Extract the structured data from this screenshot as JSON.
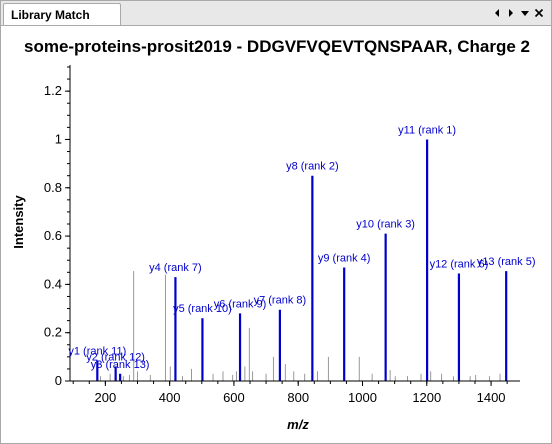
{
  "panel": {
    "tab_label": "Library Match",
    "controls": [
      {
        "name": "scroll-left-icon"
      },
      {
        "name": "scroll-right-icon"
      },
      {
        "name": "dropdown-icon"
      },
      {
        "name": "close-icon"
      }
    ]
  },
  "chart_data": {
    "type": "bar",
    "title": "some-proteins-prosit2019 - DDGVFVQEVTQNSPAAR, Charge 2",
    "xlabel": "m/z",
    "ylabel": "Intensity",
    "xlim": [
      90,
      1490
    ],
    "ylim": [
      0,
      1.3
    ],
    "xticks": [
      200,
      400,
      600,
      800,
      1000,
      1200,
      1400
    ],
    "yticks": [
      0,
      0.2,
      0.4,
      0.6,
      0.8,
      1,
      1.2
    ],
    "ytick_labels": [
      "0",
      "0.2",
      "0.4",
      "0.6",
      "0.8",
      "1",
      "1.2"
    ],
    "colors": {
      "matched": "#0000cc",
      "unmatched": "#999999",
      "label": "#0000cc"
    },
    "matched_peaks": [
      {
        "label": "y1 (rank 11)",
        "x": 175,
        "y": 0.085
      },
      {
        "label": "y2 (rank 12)",
        "x": 232,
        "y": 0.06
      },
      {
        "label": "y3 (rank 13)",
        "x": 246,
        "y": 0.03
      },
      {
        "label": "y4 (rank 7)",
        "x": 418,
        "y": 0.43
      },
      {
        "label": "y5 (rank 10)",
        "x": 502,
        "y": 0.26
      },
      {
        "label": "y6 (rank 9)",
        "x": 619,
        "y": 0.28
      },
      {
        "label": "y7 (rank 8)",
        "x": 743,
        "y": 0.295
      },
      {
        "label": "y8 (rank 2)",
        "x": 844,
        "y": 0.85
      },
      {
        "label": "y9 (rank 4)",
        "x": 943,
        "y": 0.47
      },
      {
        "label": "y10 (rank 3)",
        "x": 1072,
        "y": 0.61
      },
      {
        "label": "y11 (rank 1)",
        "x": 1201,
        "y": 1.0
      },
      {
        "label": "y12 (rank 6)",
        "x": 1300,
        "y": 0.445
      },
      {
        "label": "y13 (rank 5)",
        "x": 1447,
        "y": 0.455
      }
    ],
    "unmatched_peaks": [
      {
        "x": 185,
        "y": 0.02
      },
      {
        "x": 215,
        "y": 0.03
      },
      {
        "x": 256,
        "y": 0.02
      },
      {
        "x": 275,
        "y": 0.025
      },
      {
        "x": 288,
        "y": 0.455
      },
      {
        "x": 300,
        "y": 0.04
      },
      {
        "x": 340,
        "y": 0.025
      },
      {
        "x": 387,
        "y": 0.44
      },
      {
        "x": 402,
        "y": 0.06
      },
      {
        "x": 440,
        "y": 0.02
      },
      {
        "x": 468,
        "y": 0.05
      },
      {
        "x": 535,
        "y": 0.03
      },
      {
        "x": 566,
        "y": 0.04
      },
      {
        "x": 596,
        "y": 0.025
      },
      {
        "x": 608,
        "y": 0.04
      },
      {
        "x": 634,
        "y": 0.06
      },
      {
        "x": 648,
        "y": 0.22
      },
      {
        "x": 658,
        "y": 0.04
      },
      {
        "x": 700,
        "y": 0.03
      },
      {
        "x": 723,
        "y": 0.1
      },
      {
        "x": 760,
        "y": 0.07
      },
      {
        "x": 786,
        "y": 0.04
      },
      {
        "x": 820,
        "y": 0.03
      },
      {
        "x": 860,
        "y": 0.04
      },
      {
        "x": 894,
        "y": 0.1
      },
      {
        "x": 990,
        "y": 0.1
      },
      {
        "x": 1030,
        "y": 0.03
      },
      {
        "x": 1086,
        "y": 0.045
      },
      {
        "x": 1102,
        "y": 0.02
      },
      {
        "x": 1140,
        "y": 0.02
      },
      {
        "x": 1182,
        "y": 0.03
      },
      {
        "x": 1212,
        "y": 0.04
      },
      {
        "x": 1246,
        "y": 0.03
      },
      {
        "x": 1283,
        "y": 0.02
      },
      {
        "x": 1335,
        "y": 0.02
      },
      {
        "x": 1352,
        "y": 0.025
      },
      {
        "x": 1395,
        "y": 0.02
      },
      {
        "x": 1428,
        "y": 0.03
      }
    ]
  }
}
